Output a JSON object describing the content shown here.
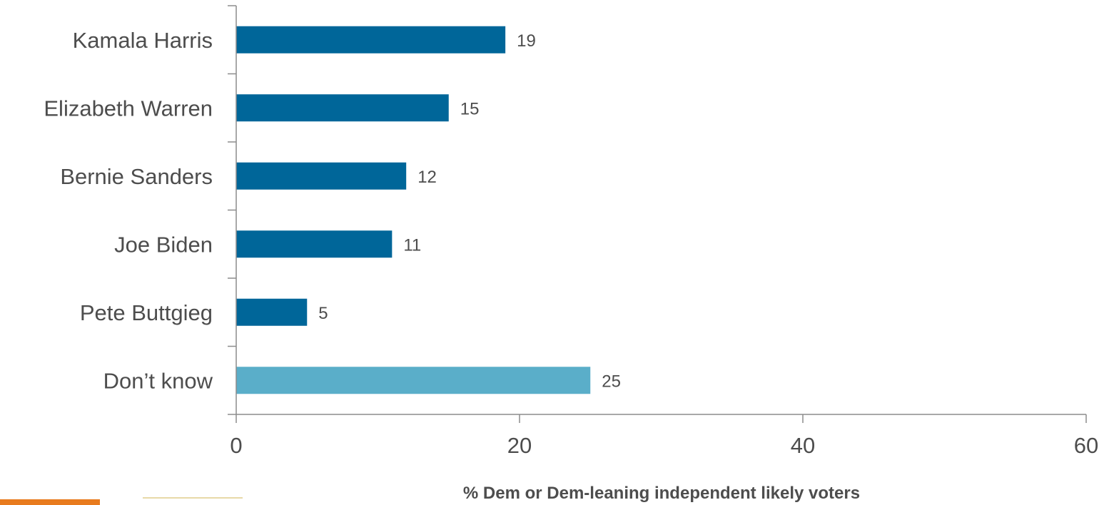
{
  "chart_data": {
    "type": "bar",
    "orientation": "horizontal",
    "categories": [
      "Kamala Harris",
      "Elizabeth Warren",
      "Bernie Sanders",
      "Joe Biden",
      "Pete Buttgieg",
      "Don’t know"
    ],
    "values": [
      19,
      15,
      12,
      11,
      5,
      25
    ],
    "data_labels": [
      "19",
      "15",
      "12",
      "11",
      "5",
      "25"
    ],
    "bar_colors": [
      "#006699",
      "#006699",
      "#006699",
      "#006699",
      "#006699",
      "#5aaec9"
    ],
    "xlim": [
      0,
      60
    ],
    "xticks": [
      0,
      20,
      40,
      60
    ],
    "xtick_labels": [
      "0",
      "20",
      "40",
      "60"
    ],
    "xlabel": "% Dem or Dem-leaning independent likely voters",
    "ylabel": "",
    "title": "",
    "grid": false,
    "legend": "none"
  },
  "colors": {
    "primary_bar": "#006699",
    "highlight_bar": "#5aaec9",
    "text": "#4d4d4d",
    "axis": "#8c8c8c"
  }
}
